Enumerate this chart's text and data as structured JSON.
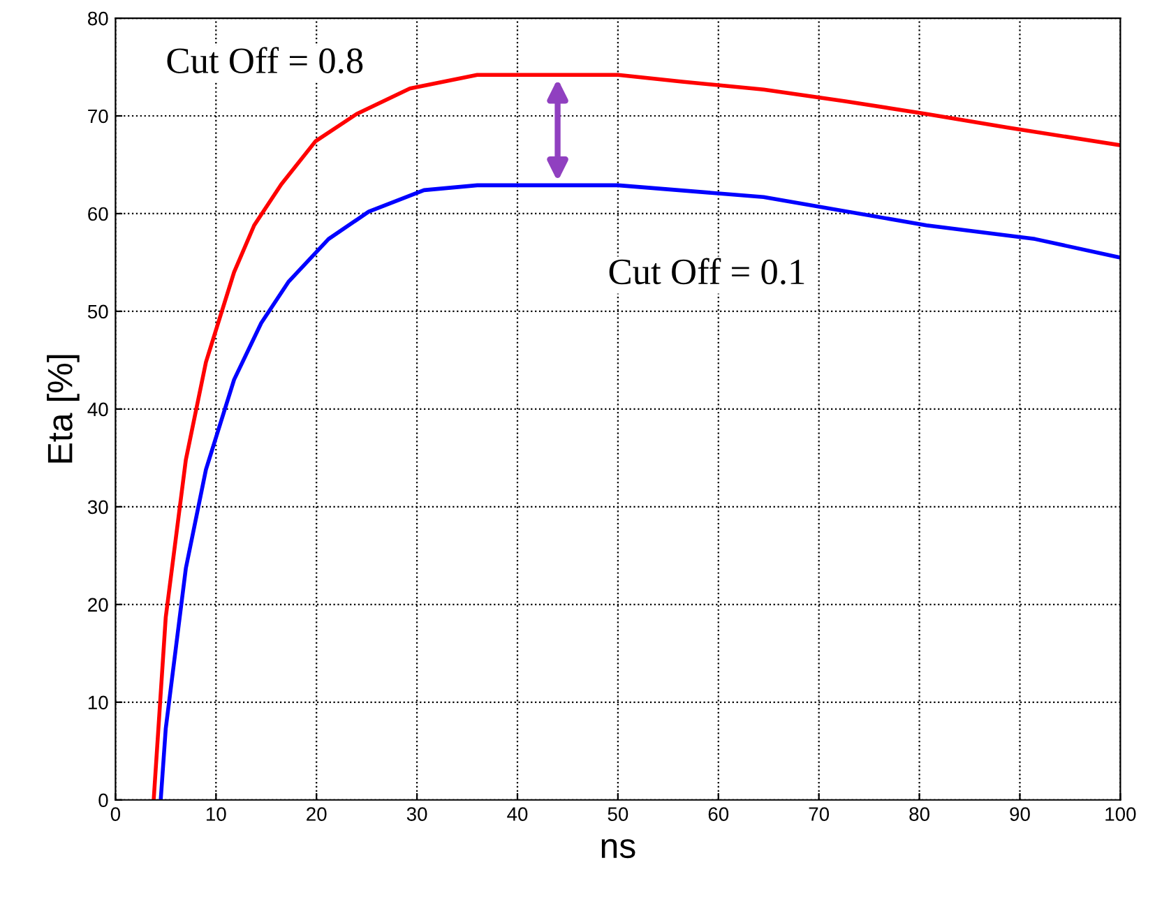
{
  "chart_data": {
    "type": "line",
    "xlabel": "ns",
    "ylabel": "Eta [%]",
    "xlim": [
      0,
      100
    ],
    "ylim": [
      0,
      80
    ],
    "xticks": [
      0,
      10,
      20,
      30,
      40,
      50,
      60,
      70,
      80,
      90,
      100
    ],
    "yticks": [
      0,
      10,
      20,
      30,
      40,
      50,
      60,
      70,
      80
    ],
    "grid": true,
    "legend": false,
    "marker": "none",
    "line_style": "solid",
    "series": [
      {
        "name": "Cut Off = 0.8",
        "color": "#ff0000",
        "x": [
          3.8,
          5,
          7,
          9,
          11.8,
          13.8,
          16.5,
          19.9,
          24,
          29.3,
          36,
          40,
          50,
          56.4,
          64.5,
          72.6,
          80.7,
          88.8,
          100
        ],
        "values": [
          0,
          18.7,
          34.8,
          44.8,
          54,
          58.8,
          63,
          67.4,
          70.2,
          72.8,
          74.2,
          74.2,
          74.2,
          73.5,
          72.7,
          71.5,
          70.2,
          68.8,
          67
        ]
      },
      {
        "name": "Cut Off = 0.1",
        "color": "#0000ff",
        "x": [
          4.5,
          5,
          7,
          9,
          11.8,
          14.5,
          17.2,
          21.2,
          25.2,
          30.7,
          36,
          40,
          50,
          64.5,
          80.7,
          91.5,
          100
        ],
        "values": [
          0,
          7.3,
          23.7,
          33.8,
          43,
          48.8,
          53,
          57.4,
          60.2,
          62.4,
          62.9,
          62.9,
          62.9,
          61.7,
          58.8,
          57.4,
          55.5
        ]
      }
    ]
  }
}
